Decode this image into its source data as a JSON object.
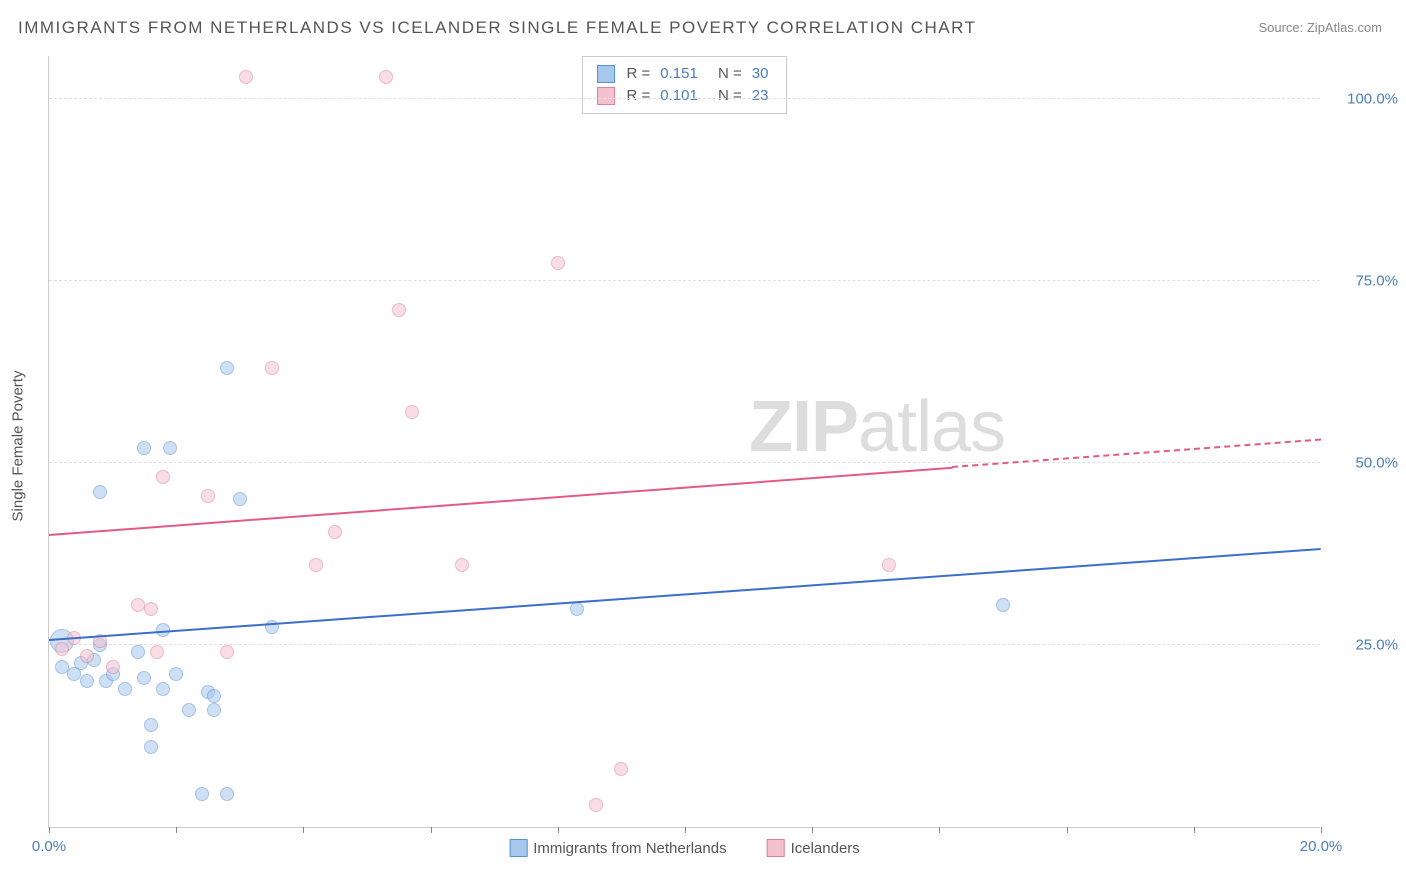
{
  "title": "IMMIGRANTS FROM NETHERLANDS VS ICELANDER SINGLE FEMALE POVERTY CORRELATION CHART",
  "source": "Source: ZipAtlas.com",
  "watermark_zip": "ZIP",
  "watermark_atlas": "atlas",
  "y_axis_title": "Single Female Poverty",
  "chart": {
    "type": "scatter",
    "xlim": [
      0,
      20
    ],
    "ylim": [
      0,
      106
    ],
    "x_ticks": [
      0,
      2,
      4,
      6,
      8,
      10,
      12,
      14,
      16,
      18,
      20
    ],
    "x_tick_labels": {
      "0": "0.0%",
      "20": "20.0%"
    },
    "y_gridlines": [
      25,
      50,
      75,
      100
    ],
    "y_tick_labels": {
      "25": "25.0%",
      "50": "50.0%",
      "75": "75.0%",
      "100": "100.0%"
    },
    "background_color": "#ffffff",
    "grid_color": "#e0e0e0",
    "axis_color": "#cccccc",
    "tick_color": "#888888",
    "label_color": "#4a7ebb",
    "marker_radius": 7,
    "marker_opacity": 0.55,
    "series": [
      {
        "name": "Immigrants from Netherlands",
        "fill": "#a6c8ec",
        "stroke": "#5b8fd6",
        "r": 0.151,
        "n": 30,
        "trend": {
          "x1": 0,
          "y1": 25.5,
          "x2": 20,
          "y2": 38,
          "color": "#3b6fc9",
          "width": 2,
          "dash_after_x": null
        },
        "points": [
          {
            "x": 0.2,
            "y": 25.5,
            "r": 12
          },
          {
            "x": 0.2,
            "y": 22
          },
          {
            "x": 0.4,
            "y": 21
          },
          {
            "x": 0.5,
            "y": 22.5
          },
          {
            "x": 0.6,
            "y": 20
          },
          {
            "x": 0.7,
            "y": 23
          },
          {
            "x": 0.8,
            "y": 25
          },
          {
            "x": 0.8,
            "y": 46
          },
          {
            "x": 0.9,
            "y": 20
          },
          {
            "x": 1.0,
            "y": 21
          },
          {
            "x": 1.2,
            "y": 19
          },
          {
            "x": 1.4,
            "y": 24
          },
          {
            "x": 1.5,
            "y": 20.5
          },
          {
            "x": 1.5,
            "y": 52
          },
          {
            "x": 1.6,
            "y": 14
          },
          {
            "x": 1.6,
            "y": 11
          },
          {
            "x": 1.8,
            "y": 19
          },
          {
            "x": 1.8,
            "y": 27
          },
          {
            "x": 1.9,
            "y": 52
          },
          {
            "x": 2.0,
            "y": 21
          },
          {
            "x": 2.2,
            "y": 16
          },
          {
            "x": 2.4,
            "y": 4.5
          },
          {
            "x": 2.5,
            "y": 18.5
          },
          {
            "x": 2.6,
            "y": 16
          },
          {
            "x": 2.6,
            "y": 18
          },
          {
            "x": 2.8,
            "y": 63
          },
          {
            "x": 2.8,
            "y": 4.5
          },
          {
            "x": 3.0,
            "y": 45
          },
          {
            "x": 3.5,
            "y": 27.5
          },
          {
            "x": 8.3,
            "y": 30
          },
          {
            "x": 15.0,
            "y": 30.5
          }
        ]
      },
      {
        "name": "Icelanders",
        "fill": "#f4c2cf",
        "stroke": "#e07f9b",
        "r": 0.101,
        "n": 23,
        "trend": {
          "x1": 0,
          "y1": 40,
          "x2": 20,
          "y2": 53,
          "color": "#e35b84",
          "width": 2,
          "dash_after_x": 14.2
        },
        "points": [
          {
            "x": 0.2,
            "y": 24.5
          },
          {
            "x": 0.4,
            "y": 26
          },
          {
            "x": 0.6,
            "y": 23.5
          },
          {
            "x": 0.8,
            "y": 25.5
          },
          {
            "x": 1.0,
            "y": 22
          },
          {
            "x": 1.4,
            "y": 30.5
          },
          {
            "x": 1.6,
            "y": 30
          },
          {
            "x": 1.7,
            "y": 24
          },
          {
            "x": 1.8,
            "y": 48
          },
          {
            "x": 2.5,
            "y": 45.5
          },
          {
            "x": 2.8,
            "y": 24
          },
          {
            "x": 3.1,
            "y": 103
          },
          {
            "x": 3.5,
            "y": 63
          },
          {
            "x": 4.2,
            "y": 36
          },
          {
            "x": 4.5,
            "y": 40.5
          },
          {
            "x": 5.3,
            "y": 103
          },
          {
            "x": 5.5,
            "y": 71
          },
          {
            "x": 5.7,
            "y": 57
          },
          {
            "x": 6.5,
            "y": 36
          },
          {
            "x": 8.0,
            "y": 77.5
          },
          {
            "x": 8.6,
            "y": 3
          },
          {
            "x": 9.0,
            "y": 8
          },
          {
            "x": 13.2,
            "y": 36
          }
        ]
      }
    ]
  },
  "legend_top": {
    "r_label": "R =",
    "n_label": "N ="
  }
}
